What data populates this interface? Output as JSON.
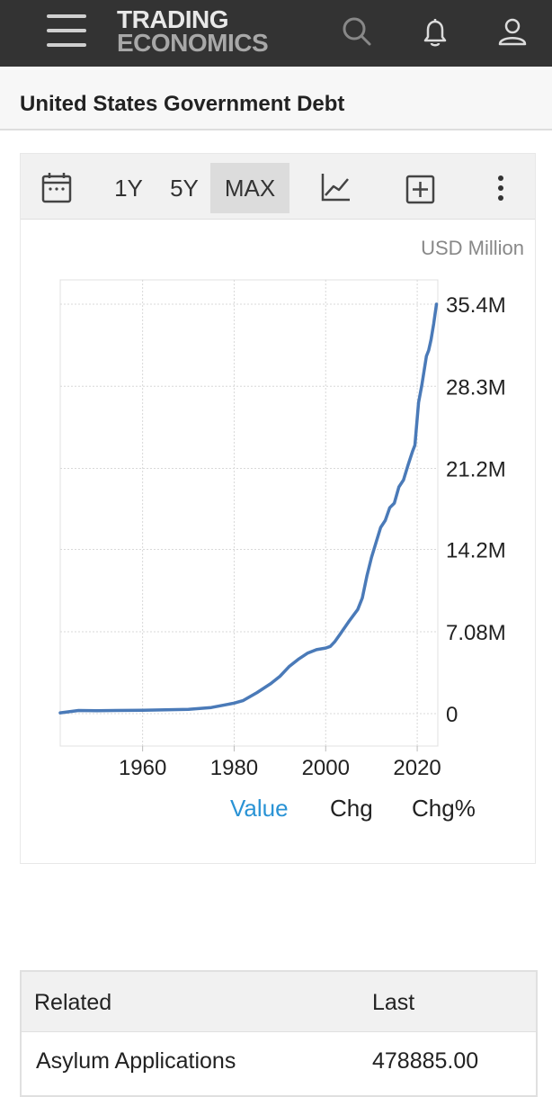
{
  "header": {
    "logo_line1": "TRADING",
    "logo_line2": "ECONOMICS"
  },
  "page": {
    "title": "United States Government Debt"
  },
  "toolbar": {
    "range_1y": "1Y",
    "range_5y": "5Y",
    "range_max": "MAX",
    "active_range": "MAX"
  },
  "chart": {
    "units": "USD Million",
    "line_color": "#4a7ab8",
    "tabs": {
      "value": "Value",
      "chg": "Chg",
      "chg_pct": "Chg%"
    },
    "active_tab": "Value"
  },
  "chart_data": {
    "type": "line",
    "xlabel": "",
    "ylabel": "",
    "x_ticks": [
      "1960",
      "1980",
      "2000",
      "2020"
    ],
    "y_ticks": [
      "0",
      "7.08M",
      "14.2M",
      "21.2M",
      "28.3M",
      "35.4M"
    ],
    "ylim": [
      -2.8,
      37.5
    ],
    "xlim": [
      1942,
      2024.5
    ],
    "grid": true,
    "series": [
      {
        "x": [
          1942,
          1946,
          1950,
          1960,
          1970,
          1975,
          1980,
          1982,
          1985,
          1988,
          1990,
          1992,
          1994,
          1996,
          1998,
          2000,
          2001,
          2002,
          2003,
          2005,
          2007,
          2008,
          2009,
          2010,
          2011,
          2012,
          2013,
          2014,
          2015,
          2016,
          2017,
          2018,
          2019,
          2019.5,
          2020.3,
          2021,
          2022,
          2022.5,
          2023,
          2023.6,
          2024.2
        ],
        "y": [
          0.07,
          0.27,
          0.26,
          0.29,
          0.37,
          0.53,
          0.91,
          1.14,
          1.82,
          2.6,
          3.23,
          4.06,
          4.69,
          5.22,
          5.53,
          5.67,
          5.81,
          6.23,
          6.78,
          7.93,
          9.0,
          10.0,
          11.9,
          13.5,
          14.8,
          16.1,
          16.7,
          17.8,
          18.2,
          19.6,
          20.2,
          21.5,
          22.7,
          23.2,
          26.9,
          28.4,
          30.9,
          31.4,
          32.3,
          33.7,
          35.4
        ]
      }
    ]
  },
  "related": {
    "headers": {
      "name": "Related",
      "last": "Last"
    },
    "rows": [
      {
        "name": "Asylum Applications",
        "last": "478885.00"
      }
    ]
  }
}
